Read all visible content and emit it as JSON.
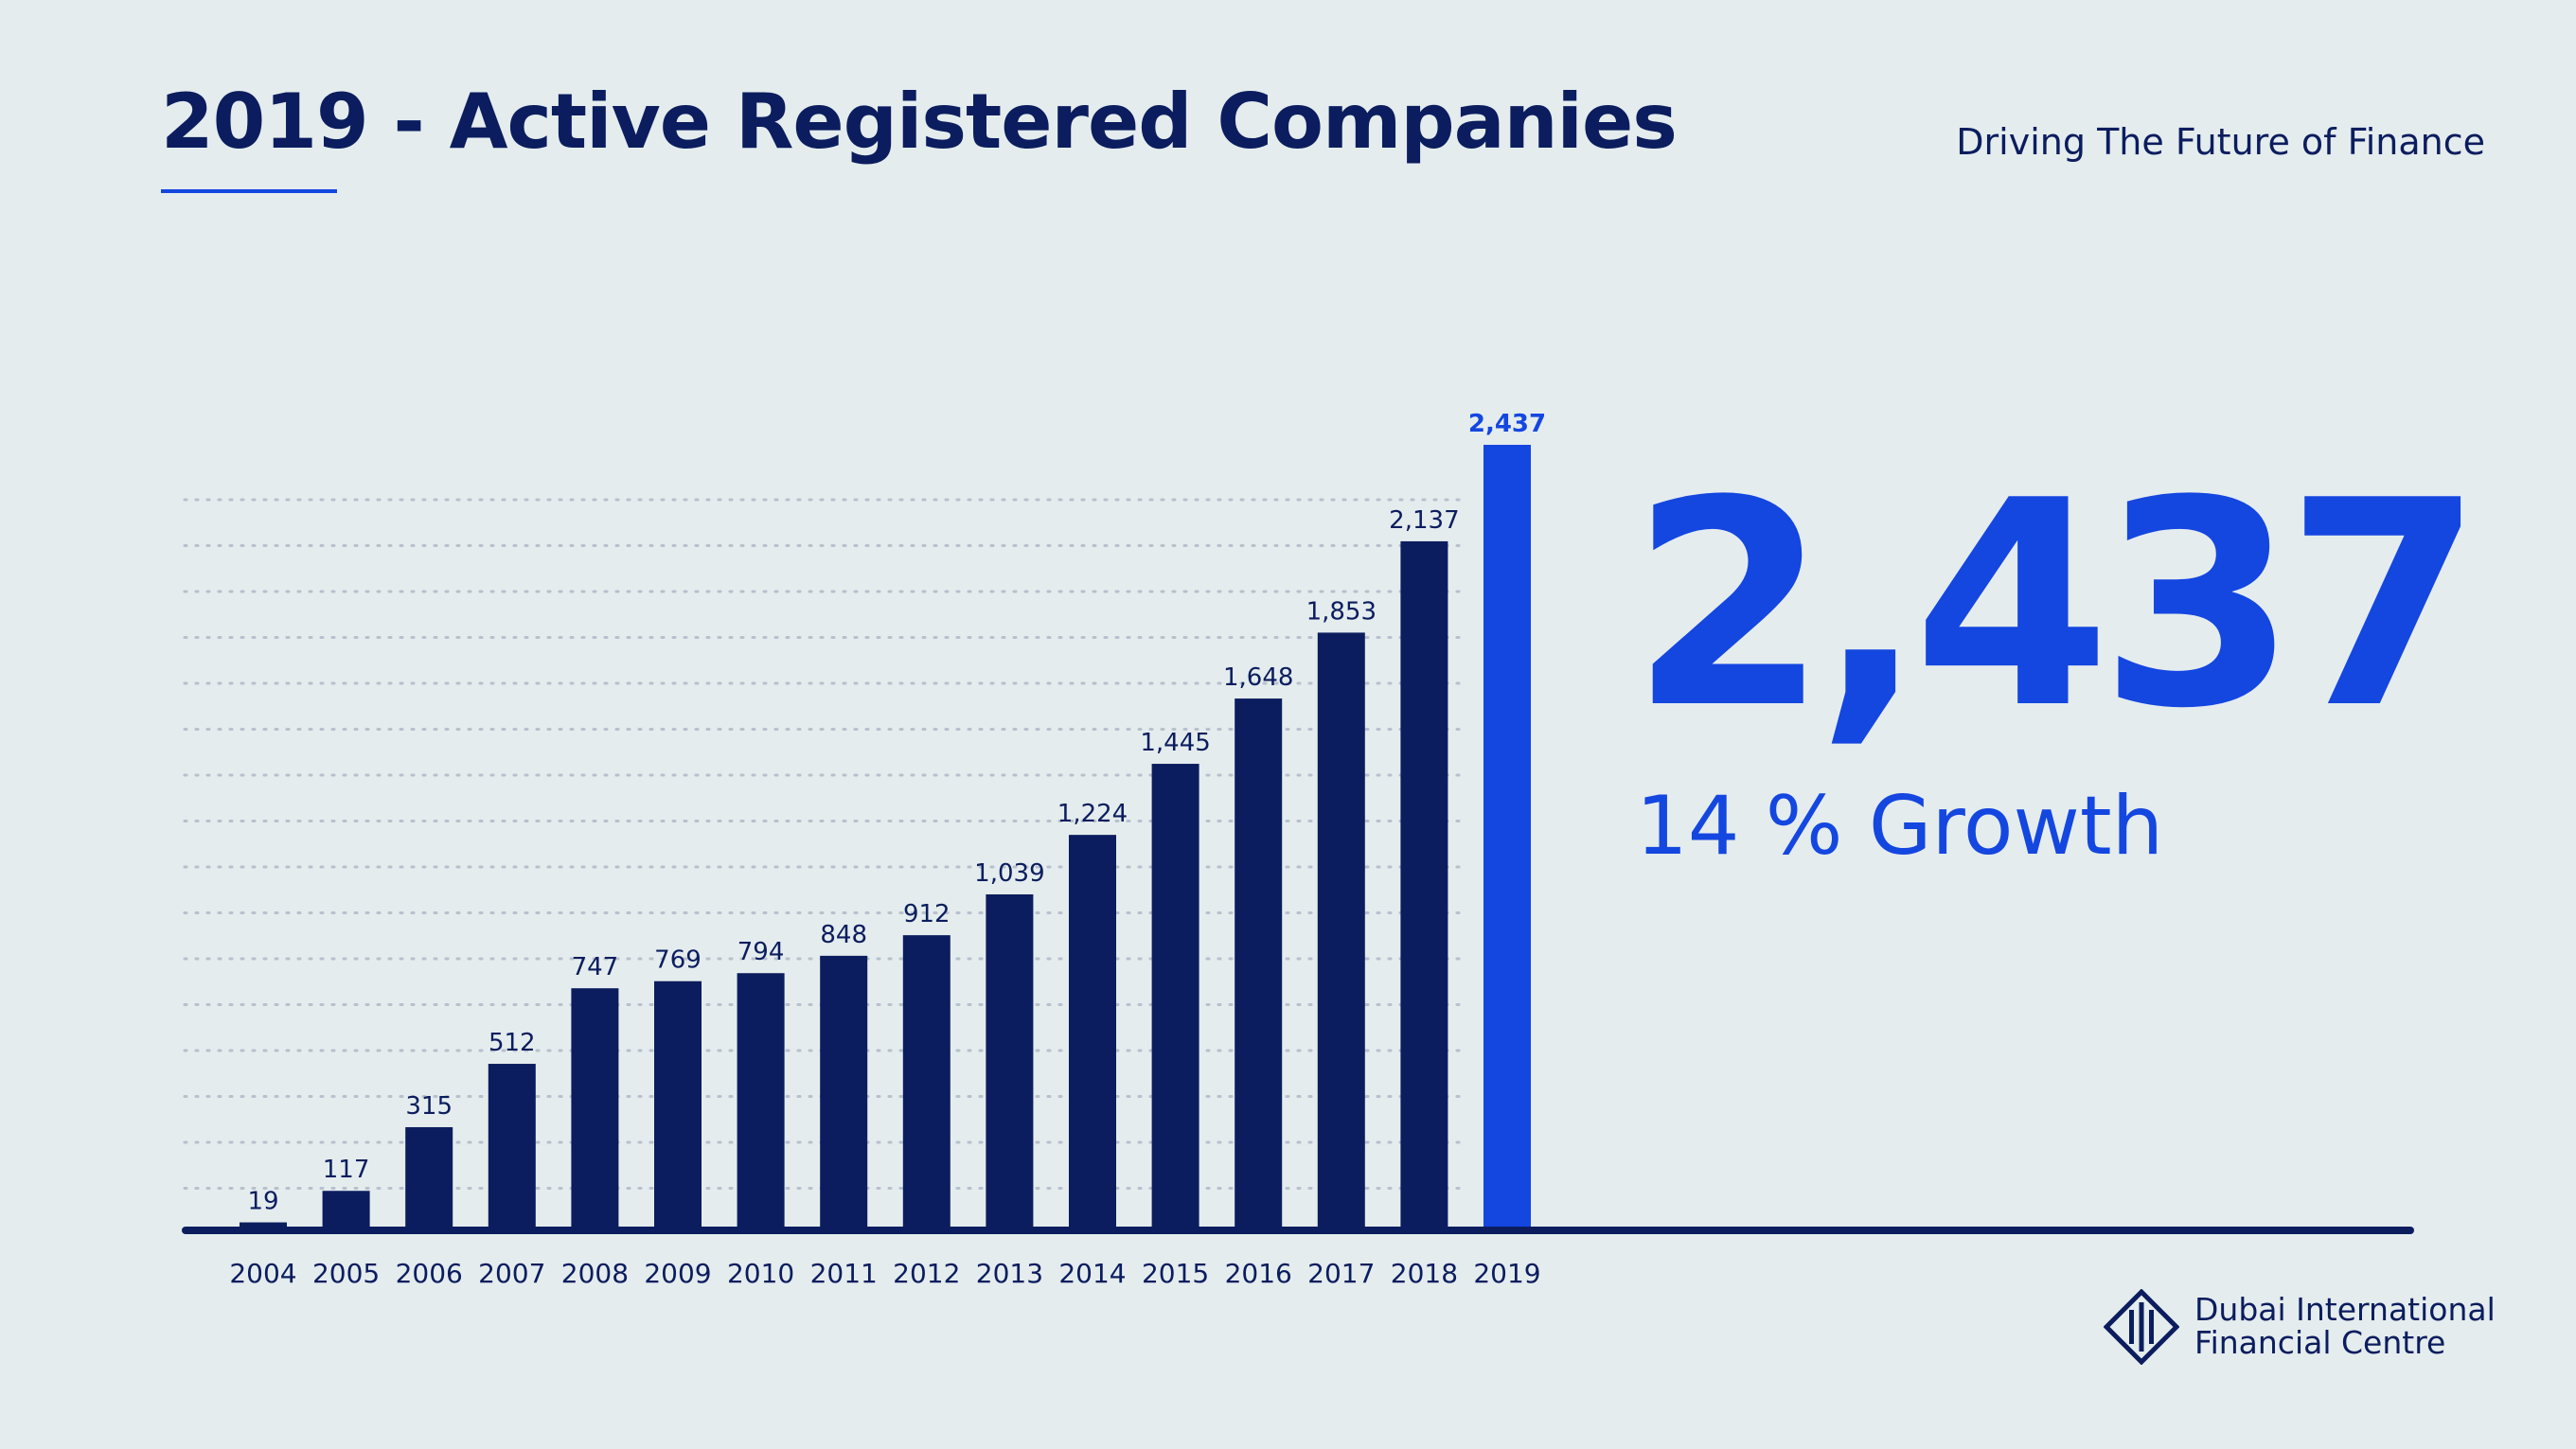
{
  "header": {
    "title": "2019 - Active Registered Companies",
    "tagline": "Driving The Future of Finance"
  },
  "highlight": {
    "value": "2,437",
    "growth": "14 % Growth"
  },
  "logo": {
    "line1": "Dubai International",
    "line2": "Financial Centre",
    "icon": "dfic-diamond-logo-icon"
  },
  "colors": {
    "background": "#e4ecee",
    "bar": "#0b1d5e",
    "highlight_bar": "#1446e0",
    "text": "#0b1d5e",
    "accent": "#1446e0"
  },
  "chart_data": {
    "type": "bar",
    "title": "2019 - Active Registered Companies",
    "xlabel": "",
    "ylabel": "",
    "categories": [
      "2004",
      "2005",
      "2006",
      "2007",
      "2008",
      "2009",
      "2010",
      "2011",
      "2012",
      "2013",
      "2014",
      "2015",
      "2016",
      "2017",
      "2018",
      "2019"
    ],
    "values": [
      19,
      117,
      315,
      512,
      747,
      769,
      794,
      848,
      912,
      1039,
      1224,
      1445,
      1648,
      1853,
      2137,
      2437
    ],
    "value_labels": [
      "19",
      "117",
      "315",
      "512",
      "747",
      "769",
      "794",
      "848",
      "912",
      "1,039",
      "1,224",
      "1,445",
      "1,648",
      "1,853",
      "2,137",
      "2,437"
    ],
    "highlight_category": "2019",
    "ylim": [
      0,
      2437
    ],
    "grid": "dotted horizontal lines",
    "legend": "none"
  }
}
